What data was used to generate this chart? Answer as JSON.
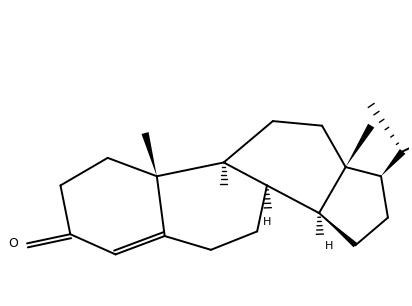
{
  "bg_color": "#ffffff",
  "line_color": "#000000",
  "line_width": 1.4,
  "fig_width": 4.12,
  "fig_height": 3.06,
  "dpi": 100,
  "xlim": [
    0,
    10
  ],
  "ylim": [
    0,
    7.5
  ]
}
